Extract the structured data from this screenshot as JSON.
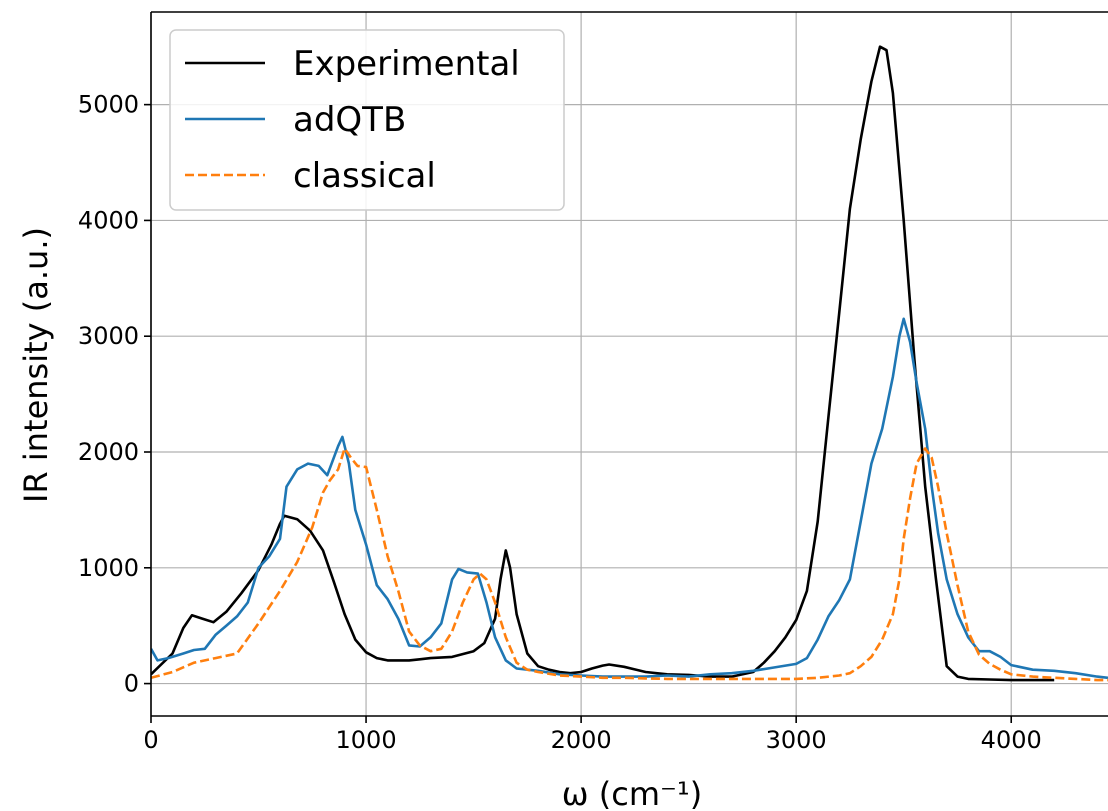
{
  "chart_data": {
    "type": "line",
    "xlabel": "ω (cm⁻¹)",
    "ylabel": "IR intensity (a.u.)",
    "xlim": [
      0,
      4450
    ],
    "ylim": [
      -280,
      5800
    ],
    "xticks": [
      0,
      1000,
      2000,
      3000,
      4000
    ],
    "yticks": [
      0,
      1000,
      2000,
      3000,
      4000,
      5000
    ],
    "xtick_labels": [
      "0",
      "1000",
      "2000",
      "3000",
      "4000"
    ],
    "ytick_labels": [
      "0",
      "1000",
      "2000",
      "3000",
      "4000",
      "5000"
    ],
    "grid": true,
    "legend_position": "top-left",
    "series": [
      {
        "name": "Experimental",
        "color": "#000000",
        "dash": "solid",
        "points": [
          [
            0,
            80
          ],
          [
            100,
            260
          ],
          [
            150,
            480
          ],
          [
            190,
            590
          ],
          [
            240,
            560
          ],
          [
            290,
            530
          ],
          [
            350,
            620
          ],
          [
            420,
            780
          ],
          [
            500,
            980
          ],
          [
            560,
            1200
          ],
          [
            600,
            1380
          ],
          [
            620,
            1450
          ],
          [
            680,
            1420
          ],
          [
            740,
            1320
          ],
          [
            800,
            1150
          ],
          [
            850,
            880
          ],
          [
            900,
            600
          ],
          [
            950,
            380
          ],
          [
            1000,
            270
          ],
          [
            1050,
            220
          ],
          [
            1100,
            200
          ],
          [
            1150,
            200
          ],
          [
            1200,
            200
          ],
          [
            1250,
            210
          ],
          [
            1300,
            220
          ],
          [
            1400,
            230
          ],
          [
            1500,
            280
          ],
          [
            1550,
            350
          ],
          [
            1600,
            560
          ],
          [
            1625,
            900
          ],
          [
            1650,
            1150
          ],
          [
            1670,
            1000
          ],
          [
            1700,
            600
          ],
          [
            1750,
            260
          ],
          [
            1800,
            150
          ],
          [
            1850,
            120
          ],
          [
            1900,
            100
          ],
          [
            1950,
            90
          ],
          [
            2000,
            100
          ],
          [
            2050,
            130
          ],
          [
            2100,
            155
          ],
          [
            2130,
            165
          ],
          [
            2200,
            145
          ],
          [
            2300,
            100
          ],
          [
            2400,
            80
          ],
          [
            2500,
            75
          ],
          [
            2600,
            60
          ],
          [
            2700,
            60
          ],
          [
            2800,
            100
          ],
          [
            2850,
            180
          ],
          [
            2900,
            280
          ],
          [
            2950,
            400
          ],
          [
            3000,
            550
          ],
          [
            3050,
            800
          ],
          [
            3100,
            1400
          ],
          [
            3150,
            2300
          ],
          [
            3200,
            3200
          ],
          [
            3250,
            4100
          ],
          [
            3300,
            4700
          ],
          [
            3350,
            5200
          ],
          [
            3390,
            5500
          ],
          [
            3420,
            5470
          ],
          [
            3450,
            5100
          ],
          [
            3500,
            4000
          ],
          [
            3550,
            2800
          ],
          [
            3600,
            1700
          ],
          [
            3650,
            900
          ],
          [
            3700,
            150
          ],
          [
            3750,
            60
          ],
          [
            3800,
            40
          ],
          [
            3900,
            35
          ],
          [
            4000,
            30
          ],
          [
            4200,
            30
          ]
        ]
      },
      {
        "name": "adQTB",
        "color": "#1f77b4",
        "dash": "solid",
        "points": [
          [
            0,
            300
          ],
          [
            30,
            200
          ],
          [
            80,
            220
          ],
          [
            150,
            260
          ],
          [
            200,
            290
          ],
          [
            250,
            300
          ],
          [
            300,
            420
          ],
          [
            350,
            500
          ],
          [
            400,
            580
          ],
          [
            450,
            700
          ],
          [
            500,
            1000
          ],
          [
            550,
            1100
          ],
          [
            600,
            1250
          ],
          [
            630,
            1700
          ],
          [
            680,
            1850
          ],
          [
            730,
            1900
          ],
          [
            780,
            1880
          ],
          [
            820,
            1800
          ],
          [
            870,
            2050
          ],
          [
            890,
            2130
          ],
          [
            920,
            1900
          ],
          [
            950,
            1500
          ],
          [
            1000,
            1200
          ],
          [
            1050,
            850
          ],
          [
            1100,
            730
          ],
          [
            1150,
            560
          ],
          [
            1200,
            330
          ],
          [
            1250,
            320
          ],
          [
            1300,
            400
          ],
          [
            1350,
            520
          ],
          [
            1400,
            900
          ],
          [
            1430,
            990
          ],
          [
            1470,
            960
          ],
          [
            1520,
            950
          ],
          [
            1560,
            700
          ],
          [
            1600,
            400
          ],
          [
            1650,
            200
          ],
          [
            1700,
            130
          ],
          [
            1800,
            110
          ],
          [
            1900,
            80
          ],
          [
            2000,
            70
          ],
          [
            2100,
            60
          ],
          [
            2200,
            60
          ],
          [
            2300,
            60
          ],
          [
            2400,
            70
          ],
          [
            2500,
            60
          ],
          [
            2600,
            80
          ],
          [
            2700,
            90
          ],
          [
            2800,
            110
          ],
          [
            2900,
            140
          ],
          [
            3000,
            170
          ],
          [
            3050,
            220
          ],
          [
            3100,
            380
          ],
          [
            3150,
            580
          ],
          [
            3200,
            720
          ],
          [
            3250,
            900
          ],
          [
            3300,
            1400
          ],
          [
            3350,
            1900
          ],
          [
            3400,
            2200
          ],
          [
            3450,
            2650
          ],
          [
            3480,
            3000
          ],
          [
            3500,
            3150
          ],
          [
            3530,
            2950
          ],
          [
            3560,
            2600
          ],
          [
            3600,
            2200
          ],
          [
            3630,
            1700
          ],
          [
            3660,
            1300
          ],
          [
            3700,
            900
          ],
          [
            3750,
            600
          ],
          [
            3800,
            400
          ],
          [
            3850,
            280
          ],
          [
            3900,
            280
          ],
          [
            3950,
            230
          ],
          [
            4000,
            160
          ],
          [
            4100,
            120
          ],
          [
            4200,
            110
          ],
          [
            4300,
            90
          ],
          [
            4400,
            60
          ],
          [
            4450,
            50
          ]
        ]
      },
      {
        "name": "classical",
        "color": "#ff7f0e",
        "dash": "dashed",
        "points": [
          [
            0,
            50
          ],
          [
            100,
            100
          ],
          [
            200,
            180
          ],
          [
            300,
            220
          ],
          [
            400,
            260
          ],
          [
            500,
            520
          ],
          [
            600,
            800
          ],
          [
            680,
            1050
          ],
          [
            750,
            1350
          ],
          [
            800,
            1650
          ],
          [
            830,
            1750
          ],
          [
            870,
            1850
          ],
          [
            900,
            2030
          ],
          [
            930,
            1950
          ],
          [
            960,
            1880
          ],
          [
            1000,
            1870
          ],
          [
            1050,
            1500
          ],
          [
            1100,
            1100
          ],
          [
            1150,
            800
          ],
          [
            1200,
            450
          ],
          [
            1250,
            330
          ],
          [
            1300,
            280
          ],
          [
            1350,
            300
          ],
          [
            1400,
            450
          ],
          [
            1450,
            700
          ],
          [
            1500,
            900
          ],
          [
            1530,
            950
          ],
          [
            1560,
            900
          ],
          [
            1600,
            700
          ],
          [
            1650,
            400
          ],
          [
            1700,
            180
          ],
          [
            1750,
            120
          ],
          [
            1800,
            100
          ],
          [
            1900,
            70
          ],
          [
            2000,
            60
          ],
          [
            2100,
            50
          ],
          [
            2200,
            50
          ],
          [
            2300,
            45
          ],
          [
            2400,
            40
          ],
          [
            2500,
            40
          ],
          [
            2600,
            40
          ],
          [
            2700,
            40
          ],
          [
            2800,
            40
          ],
          [
            2900,
            40
          ],
          [
            3000,
            40
          ],
          [
            3100,
            50
          ],
          [
            3200,
            70
          ],
          [
            3250,
            90
          ],
          [
            3300,
            150
          ],
          [
            3350,
            230
          ],
          [
            3400,
            380
          ],
          [
            3450,
            600
          ],
          [
            3480,
            900
          ],
          [
            3500,
            1250
          ],
          [
            3530,
            1600
          ],
          [
            3560,
            1900
          ],
          [
            3600,
            2030
          ],
          [
            3630,
            1950
          ],
          [
            3660,
            1700
          ],
          [
            3700,
            1300
          ],
          [
            3750,
            850
          ],
          [
            3800,
            450
          ],
          [
            3850,
            250
          ],
          [
            3900,
            170
          ],
          [
            3950,
            120
          ],
          [
            4000,
            80
          ],
          [
            4100,
            60
          ],
          [
            4200,
            50
          ],
          [
            4300,
            40
          ],
          [
            4400,
            30
          ],
          [
            4450,
            30
          ]
        ]
      }
    ]
  }
}
